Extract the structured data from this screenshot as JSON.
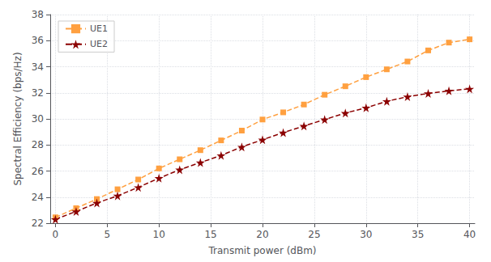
{
  "chart_data": {
    "type": "line",
    "xlabel": "Transmit power (dBm)",
    "ylabel": "Spectral Efficiency (bps/Hz)",
    "x": [
      0,
      2,
      4,
      6,
      8,
      10,
      12,
      14,
      16,
      18,
      20,
      22,
      24,
      26,
      28,
      30,
      32,
      34,
      36,
      38,
      40
    ],
    "series": [
      {
        "name": "UE1",
        "color": "#FFA040",
        "marker": "square",
        "line_style": "dashed",
        "values": [
          22.45,
          23.15,
          23.85,
          24.6,
          25.35,
          26.2,
          26.9,
          27.6,
          28.35,
          29.1,
          29.95,
          30.5,
          31.1,
          31.85,
          32.5,
          33.2,
          33.8,
          34.4,
          35.25,
          35.85,
          36.1
        ]
      },
      {
        "name": "UE2",
        "color": "#8B0000",
        "marker": "star",
        "line_style": "dashed",
        "values": [
          22.3,
          22.9,
          23.55,
          24.1,
          24.75,
          25.45,
          26.1,
          26.65,
          27.2,
          27.85,
          28.4,
          28.95,
          29.45,
          29.95,
          30.45,
          30.85,
          31.35,
          31.7,
          31.95,
          32.15,
          32.3
        ]
      }
    ],
    "xlim": [
      -0.5,
      40.5
    ],
    "xticks": [
      0,
      5,
      10,
      15,
      20,
      25,
      30,
      35,
      40
    ],
    "ylim": [
      22,
      38
    ],
    "yticks": [
      22,
      24,
      26,
      28,
      30,
      32,
      34,
      36,
      38
    ],
    "grid": true,
    "legend": "upper left"
  }
}
